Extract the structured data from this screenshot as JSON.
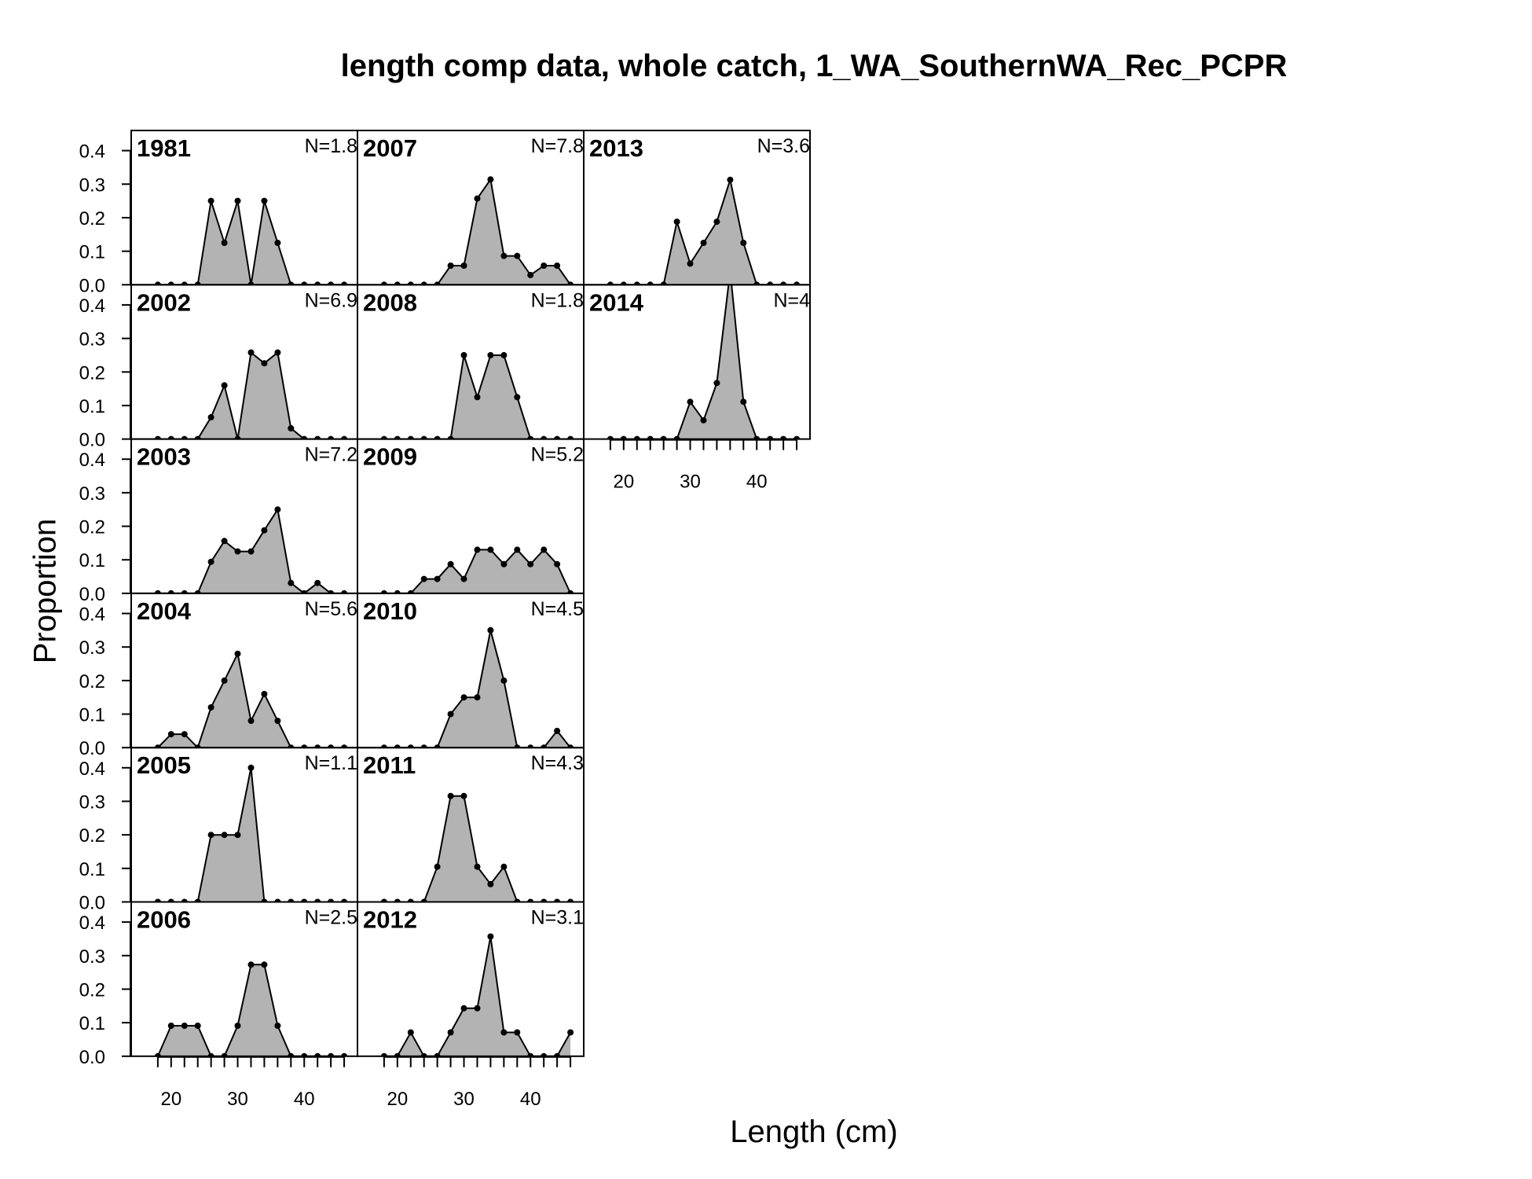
{
  "title": "length comp data, whole catch, 1_WA_SouthernWA_Rec_PCPR",
  "chart_data": {
    "type": "area",
    "title": "length comp data, whole catch, 1_WA_SouthernWA_Rec_PCPR",
    "xlabel": "Length (cm)",
    "ylabel": "Proportion",
    "xlim": [
      14,
      48
    ],
    "ylim": [
      0,
      0.46
    ],
    "x_ticks": [
      20,
      30,
      40
    ],
    "y_ticks": [
      "0.0",
      "0.1",
      "0.2",
      "0.3",
      "0.4"
    ],
    "x": [
      18,
      20,
      22,
      24,
      26,
      28,
      30,
      32,
      34,
      36,
      38,
      40,
      42,
      44,
      46
    ],
    "fill_color": "#b3b3b3",
    "line_color": "#000000",
    "grid": false,
    "panels": [
      {
        "year": "1981",
        "n_label": "N=1.8",
        "values": [
          0,
          0,
          0,
          0,
          0.25,
          0.125,
          0.25,
          0,
          0.25,
          0.125,
          0,
          0,
          0,
          0,
          0
        ]
      },
      {
        "year": "2002",
        "n_label": "N=6.9",
        "values": [
          0,
          0,
          0,
          0,
          0.065,
          0.16,
          0,
          0.258,
          0.226,
          0.258,
          0.032,
          0,
          0,
          0,
          0
        ]
      },
      {
        "year": "2003",
        "n_label": "N=7.2",
        "values": [
          0,
          0,
          0,
          0,
          0.094,
          0.156,
          0.125,
          0.125,
          0.188,
          0.25,
          0.031,
          0,
          0.031,
          0,
          0
        ]
      },
      {
        "year": "2004",
        "n_label": "N=5.6",
        "values": [
          0,
          0.04,
          0.04,
          0,
          0.12,
          0.2,
          0.28,
          0.08,
          0.16,
          0.08,
          0,
          0,
          0,
          0,
          0
        ]
      },
      {
        "year": "2005",
        "n_label": "N=1.1",
        "values": [
          0,
          0,
          0,
          0,
          0.2,
          0.2,
          0.2,
          0.4,
          0,
          0,
          0,
          0,
          0,
          0,
          0
        ]
      },
      {
        "year": "2006",
        "n_label": "N=2.5",
        "values": [
          0,
          0.091,
          0.091,
          0.091,
          0,
          0,
          0.091,
          0.273,
          0.273,
          0.091,
          0,
          0,
          0,
          0,
          0
        ]
      },
      {
        "year": "2007",
        "n_label": "N=7.8",
        "values": [
          0,
          0,
          0,
          0,
          0,
          0.057,
          0.057,
          0.257,
          0.314,
          0.086,
          0.086,
          0.029,
          0.057,
          0.057,
          0
        ]
      },
      {
        "year": "2008",
        "n_label": "N=1.8",
        "values": [
          0,
          0,
          0,
          0,
          0,
          0,
          0.25,
          0.125,
          0.25,
          0.25,
          0.125,
          0,
          0,
          0,
          0
        ]
      },
      {
        "year": "2009",
        "n_label": "N=5.2",
        "values": [
          0,
          0,
          0,
          0.043,
          0.043,
          0.087,
          0.043,
          0.13,
          0.13,
          0.087,
          0.13,
          0.087,
          0.13,
          0.087,
          0
        ]
      },
      {
        "year": "2010",
        "n_label": "N=4.5",
        "values": [
          0,
          0,
          0,
          0,
          0,
          0.1,
          0.15,
          0.15,
          0.35,
          0.2,
          0,
          0,
          0,
          0.05,
          0
        ]
      },
      {
        "year": "2011",
        "n_label": "N=4.3",
        "values": [
          0,
          0,
          0,
          0,
          0.105,
          0.316,
          0.316,
          0.105,
          0.053,
          0.105,
          0,
          0,
          0,
          0,
          0
        ]
      },
      {
        "year": "2012",
        "n_label": "N=3.1",
        "values": [
          0,
          0,
          0.071,
          0,
          0,
          0.071,
          0.143,
          0.143,
          0.357,
          0.071,
          0.071,
          0,
          0,
          0,
          0.071
        ]
      },
      {
        "year": "2013",
        "n_label": "N=3.6",
        "values": [
          0,
          0,
          0,
          0,
          0,
          0.188,
          0.063,
          0.125,
          0.188,
          0.313,
          0.125,
          0,
          0,
          0,
          0
        ]
      },
      {
        "year": "2014",
        "n_label": "N=4",
        "values": [
          0,
          0,
          0,
          0,
          0,
          0,
          0.111,
          0.056,
          0.167,
          0.5,
          0.111,
          0,
          0,
          0,
          0
        ]
      }
    ]
  }
}
